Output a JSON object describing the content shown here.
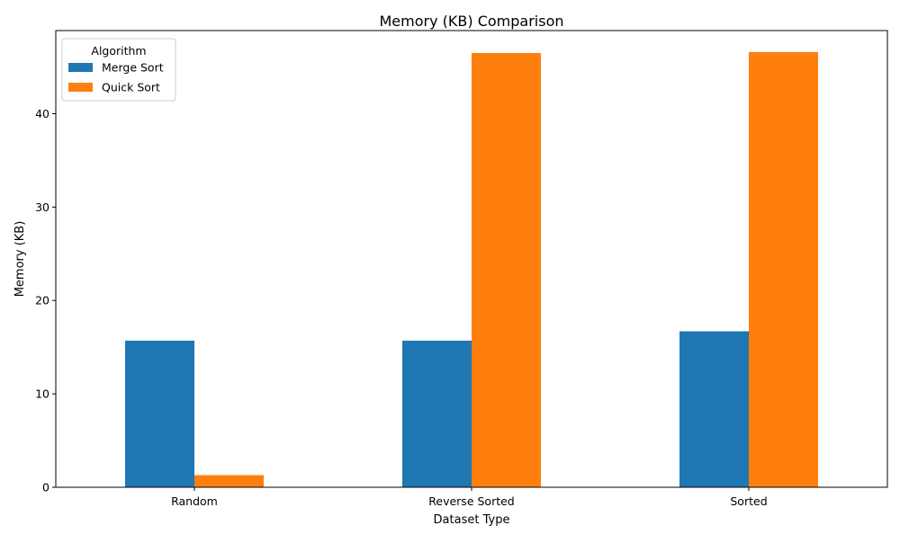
{
  "chart_data": {
    "type": "bar",
    "title": "Memory (KB) Comparison",
    "xlabel": "Dataset Type",
    "ylabel": "Memory (KB)",
    "categories": [
      "Random",
      "Reverse Sorted",
      "Sorted"
    ],
    "series": [
      {
        "name": "Merge Sort",
        "values": [
          15.7,
          15.7,
          16.7
        ],
        "color": "#1f77b4"
      },
      {
        "name": "Quick Sort",
        "values": [
          1.3,
          46.5,
          46.6
        ],
        "color": "#ff7f0e"
      }
    ],
    "ylim": [
      0,
      48.9
    ],
    "yticks": [
      0,
      10,
      20,
      30,
      40
    ],
    "legend": {
      "title": "Algorithm",
      "placement": "top-left"
    },
    "grid": false
  }
}
